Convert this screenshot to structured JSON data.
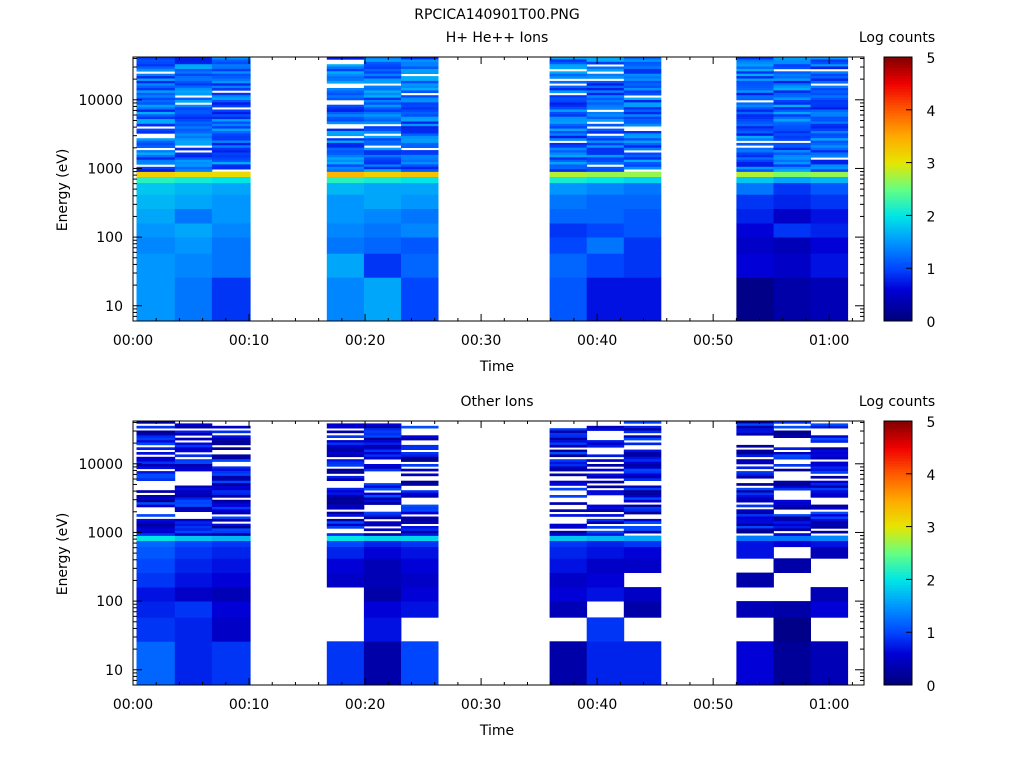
{
  "figure_title": "RPCICA140901T00.PNG",
  "chart_data": [
    {
      "type": "heatmap",
      "title": "H+ He++ Ions",
      "xlabel": "Time",
      "ylabel": "Energy (eV)",
      "yscale": "log",
      "x_tick_labels": [
        "00:00",
        "00:10",
        "00:20",
        "00:30",
        "00:40",
        "00:50",
        "01:00"
      ],
      "x_tick_minutes": [
        0,
        10,
        20,
        30,
        40,
        50,
        60
      ],
      "xlim_minutes": [
        0,
        63
      ],
      "y_tick_labels": [
        "10",
        "100",
        "1000",
        "10000"
      ],
      "y_tick_values": [
        10,
        100,
        1000,
        10000
      ],
      "ylim": [
        6,
        42000
      ],
      "colorbar": {
        "label": "Log counts",
        "range": [
          0,
          5
        ],
        "tick_labels": [
          "0",
          "1",
          "2",
          "3",
          "4",
          "5"
        ]
      },
      "time_bins_minutes": [
        [
          0.3,
          3.6
        ],
        [
          3.6,
          6.8
        ],
        [
          6.8,
          10.1
        ],
        [
          16.7,
          19.9
        ],
        [
          19.9,
          23.1
        ],
        [
          23.1,
          26.3
        ],
        [
          35.9,
          39.1
        ],
        [
          39.1,
          42.3
        ],
        [
          42.3,
          45.5
        ],
        [
          52.0,
          55.2
        ],
        [
          55.2,
          58.4
        ],
        [
          58.4,
          61.6
        ]
      ],
      "energy_low_band_edges_eV": [
        6,
        26,
        58,
        100,
        160,
        260,
        420,
        620,
        760,
        900
      ],
      "low_band_values": [
        [
          1.5,
          1.3,
          0.9,
          1.4,
          1.6,
          1.0,
          1.1,
          0.7,
          0.7,
          0.1,
          0.3,
          0.4
        ],
        [
          1.5,
          1.4,
          1.3,
          1.6,
          0.9,
          1.2,
          1.2,
          1.0,
          0.9,
          0.6,
          0.5,
          0.7
        ],
        [
          1.4,
          1.5,
          1.3,
          1.3,
          1.2,
          1.1,
          1.0,
          1.3,
          0.9,
          0.5,
          0.4,
          0.6
        ],
        [
          1.5,
          1.6,
          1.4,
          1.4,
          1.3,
          1.4,
          0.9,
          1.0,
          1.1,
          0.6,
          0.9,
          0.8
        ],
        [
          1.6,
          1.3,
          1.5,
          1.5,
          1.4,
          1.3,
          1.2,
          1.2,
          1.1,
          0.8,
          0.5,
          0.7
        ],
        [
          1.7,
          1.6,
          1.5,
          1.5,
          1.6,
          1.5,
          1.3,
          1.2,
          1.2,
          0.9,
          0.8,
          0.9
        ],
        [
          1.8,
          1.7,
          1.6,
          1.7,
          1.6,
          1.6,
          1.5,
          1.4,
          1.3,
          1.3,
          0.9,
          1.1
        ],
        [
          2.2,
          2.1,
          2.0,
          2.2,
          2.1,
          2.0,
          2.1,
          2.0,
          1.9,
          1.8,
          1.6,
          1.7
        ],
        [
          3.2,
          3.1,
          3.1,
          3.4,
          3.2,
          3.3,
          2.8,
          2.7,
          2.7,
          2.8,
          2.6,
          2.7
        ]
      ],
      "upper_band_median": 1.2,
      "gap_rows": [],
      "gap_rows_fraction": 0.08
    },
    {
      "type": "heatmap",
      "title": "Other Ions",
      "xlabel": "Time",
      "ylabel": "Energy (eV)",
      "yscale": "log",
      "x_tick_labels": [
        "00:00",
        "00:10",
        "00:20",
        "00:30",
        "00:40",
        "00:50",
        "01:00"
      ],
      "x_tick_minutes": [
        0,
        10,
        20,
        30,
        40,
        50,
        60
      ],
      "xlim_minutes": [
        0,
        63
      ],
      "y_tick_labels": [
        "10",
        "100",
        "1000",
        "10000"
      ],
      "y_tick_values": [
        10,
        100,
        1000,
        10000
      ],
      "ylim": [
        6,
        42000
      ],
      "colorbar": {
        "label": "Log counts",
        "range": [
          0,
          5
        ],
        "tick_labels": [
          "0",
          "1",
          "2",
          "3",
          "4",
          "5"
        ]
      },
      "time_bins_minutes": [
        [
          0.3,
          3.6
        ],
        [
          3.6,
          6.8
        ],
        [
          6.8,
          10.1
        ],
        [
          16.7,
          19.9
        ],
        [
          19.9,
          23.1
        ],
        [
          23.1,
          26.3
        ],
        [
          35.9,
          39.1
        ],
        [
          39.1,
          42.3
        ],
        [
          42.3,
          45.5
        ],
        [
          52.0,
          55.2
        ],
        [
          55.2,
          58.4
        ],
        [
          58.4,
          61.6
        ]
      ],
      "energy_low_band_edges_eV": [
        6,
        26,
        58,
        100,
        160,
        260,
        420,
        620,
        760,
        900
      ],
      "low_band_values": [
        [
          1.2,
          0.8,
          0.9,
          0.9,
          0.3,
          1.0,
          0.3,
          0.8,
          0.8,
          0.6,
          0.2,
          0.4
        ],
        [
          0.9,
          0.8,
          0.5,
          null,
          0.7,
          null,
          null,
          0.9,
          null,
          null,
          0.1,
          null
        ],
        [
          0.8,
          0.9,
          0.6,
          null,
          0.6,
          0.7,
          0.4,
          null,
          0.3,
          0.4,
          0.3,
          0.6
        ],
        [
          0.7,
          0.5,
          0.4,
          null,
          0.3,
          0.6,
          0.6,
          0.7,
          0.5,
          null,
          null,
          0.4
        ],
        [
          0.9,
          0.7,
          0.6,
          0.5,
          0.4,
          0.5,
          0.5,
          0.6,
          null,
          0.3,
          null,
          null
        ],
        [
          1.0,
          0.8,
          0.7,
          0.6,
          0.4,
          0.6,
          0.7,
          0.5,
          0.5,
          null,
          0.3,
          null
        ],
        [
          1.1,
          0.9,
          0.8,
          0.8,
          0.6,
          0.7,
          0.8,
          0.7,
          0.6,
          0.7,
          null,
          0.4
        ],
        [
          1.2,
          1.0,
          0.9,
          1.0,
          0.8,
          0.9,
          0.9,
          0.8,
          0.9,
          0.7,
          0.6,
          0.7
        ],
        [
          2.0,
          1.8,
          1.7,
          2.0,
          1.9,
          1.9,
          1.8,
          1.7,
          1.6,
          1.3,
          1.3,
          1.4
        ]
      ],
      "upper_band_median": 0.6,
      "gap_rows": [],
      "gap_rows_fraction": 0.38
    }
  ]
}
